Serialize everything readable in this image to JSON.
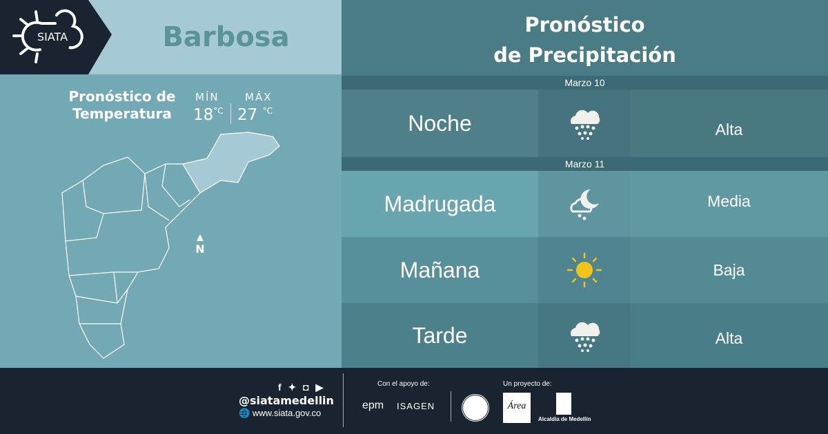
{
  "brand": {
    "logo_text": "SIATA",
    "city": "Barbosa"
  },
  "temperature": {
    "title_line1": "Pronóstico de",
    "title_line2": "Temperatura",
    "min_label": "MÍN",
    "max_label": "MÁX",
    "min_value": "18",
    "max_value": "27",
    "unit": "°C",
    "north_label": "N"
  },
  "precipitation": {
    "title_line1": "Pronóstico",
    "title_line2": "de Precipitación",
    "days": [
      {
        "date": "Marzo 10",
        "periods": [
          {
            "label": "Noche",
            "icon": "heavy-rain-icon",
            "level": "Alta"
          }
        ]
      },
      {
        "date": "Marzo 11",
        "periods": [
          {
            "label": "Madrugada",
            "icon": "night-rain-icon",
            "level": "Media"
          },
          {
            "label": "Mañana",
            "icon": "sun-icon",
            "level": "Baja"
          },
          {
            "label": "Tarde",
            "icon": "heavy-rain-icon",
            "level": "Alta"
          }
        ]
      }
    ]
  },
  "colors": {
    "dark": "#1a2431",
    "accent": "#5a9499",
    "sun": "#f2c318"
  },
  "footer": {
    "handle": "@siatamedellin",
    "website": "www.siata.gov.co",
    "support_label": "Con el apoyo de:",
    "project_label": "Un proyecto de:",
    "sponsors": [
      "epm",
      "ISAGEN"
    ],
    "partners": [
      "Universidad Nacional Medellín",
      "Área Metropolitana Valle de Aburrá",
      "Alcaldía de Medellín"
    ]
  }
}
